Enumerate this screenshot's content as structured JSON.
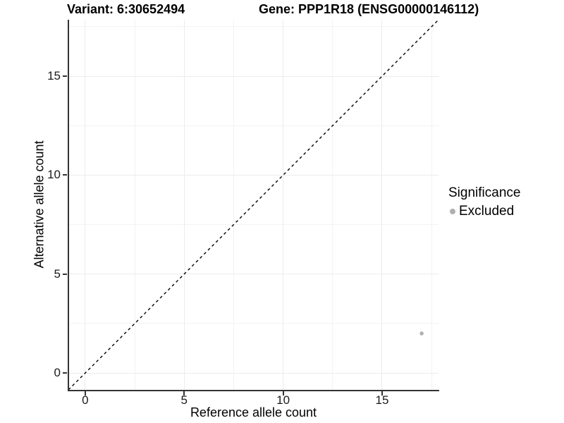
{
  "chart_data": {
    "type": "scatter",
    "title_left": "Variant: 6:30652494",
    "title_right": "Gene: PPP1R18 (ENSG00000146112)",
    "xlabel": "Reference allele count",
    "ylabel": "Alternative allele count",
    "xlim": [
      -0.85,
      17.85
    ],
    "ylim": [
      -0.85,
      17.85
    ],
    "x_major_ticks": [
      0,
      5,
      10,
      15
    ],
    "y_major_ticks": [
      0,
      5,
      10,
      15
    ],
    "x_minor_ticks": [
      2.5,
      7.5,
      12.5,
      17.5
    ],
    "y_minor_ticks": [
      2.5,
      7.5,
      12.5,
      17.5
    ],
    "grid": "major+minor",
    "reference_line": {
      "type": "identity",
      "label": "y = x",
      "style": "dashed",
      "from": [
        -0.85,
        -0.85
      ],
      "to": [
        17.85,
        17.85
      ]
    },
    "series": [
      {
        "name": "Excluded",
        "marker": "circle",
        "color": "#b0b0b0",
        "points": [
          {
            "x": 17,
            "y": 2
          }
        ]
      }
    ],
    "legend": {
      "title": "Significance",
      "position": "right",
      "entries": [
        {
          "label": "Excluded",
          "color": "#b0b0b0",
          "marker": "circle"
        }
      ]
    },
    "colors": {
      "axis_line": "#333333",
      "tick_text": "#1a1a1a",
      "grid_major": "#ececec",
      "grid_minor": "#f3f3f3",
      "reference_line": "#000000",
      "title_text": "#000000",
      "background": "#ffffff"
    }
  }
}
